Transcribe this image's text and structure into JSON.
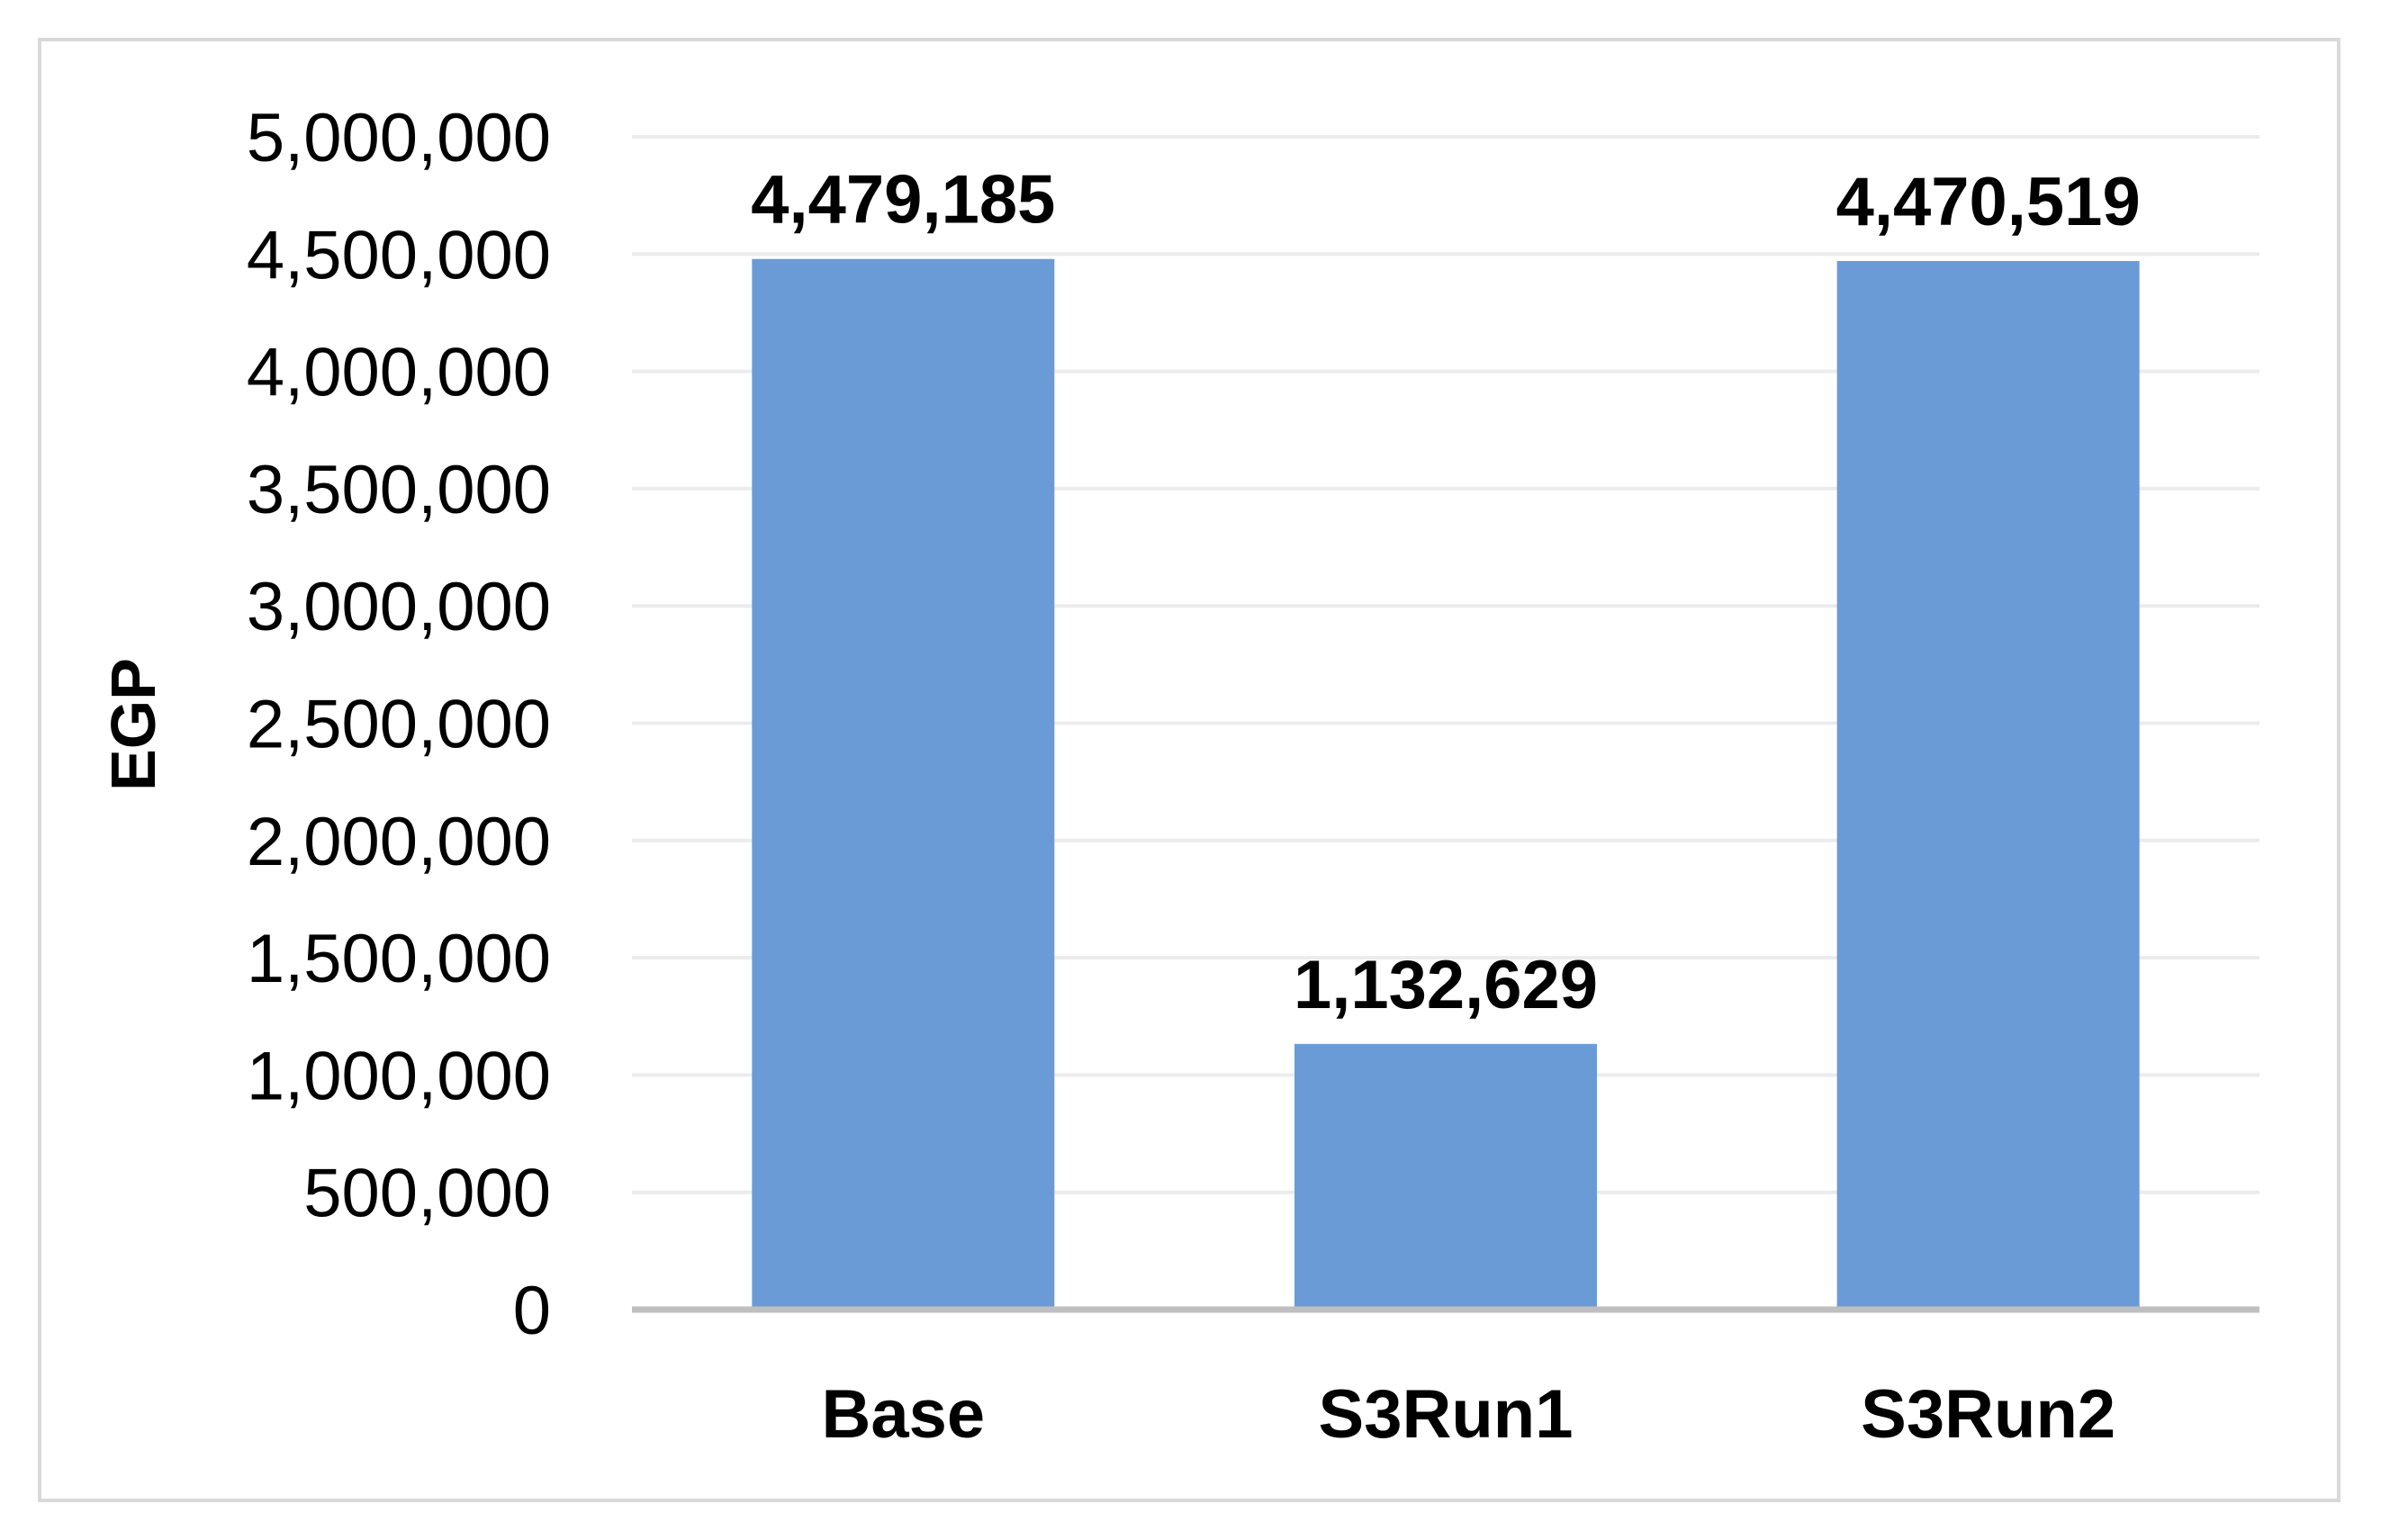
{
  "chart_data": {
    "type": "bar",
    "title": "",
    "xlabel": "",
    "ylabel": "EGP",
    "categories": [
      "Base",
      "S3Run1",
      "S3Run2"
    ],
    "values": [
      4479185,
      1132629,
      4470519
    ],
    "data_labels": [
      "4,479,185",
      "1,132,629",
      "4,470,519"
    ],
    "ylim": [
      0,
      5000000
    ],
    "yticks": [
      0,
      500000,
      1000000,
      1500000,
      2000000,
      2500000,
      3000000,
      3500000,
      4000000,
      4500000,
      5000000
    ],
    "ytick_labels": [
      "0",
      "500,000",
      "1,000,000",
      "1,500,000",
      "2,000,000",
      "2,500,000",
      "3,000,000",
      "3,500,000",
      "4,000,000",
      "4,500,000",
      "5,000,000"
    ],
    "grid": true,
    "legend": "none",
    "colors": {
      "bar": "#6b9bd6",
      "grid": "#ececec",
      "axis": "#bfbfbf",
      "frame": "#d9d9d9"
    }
  }
}
